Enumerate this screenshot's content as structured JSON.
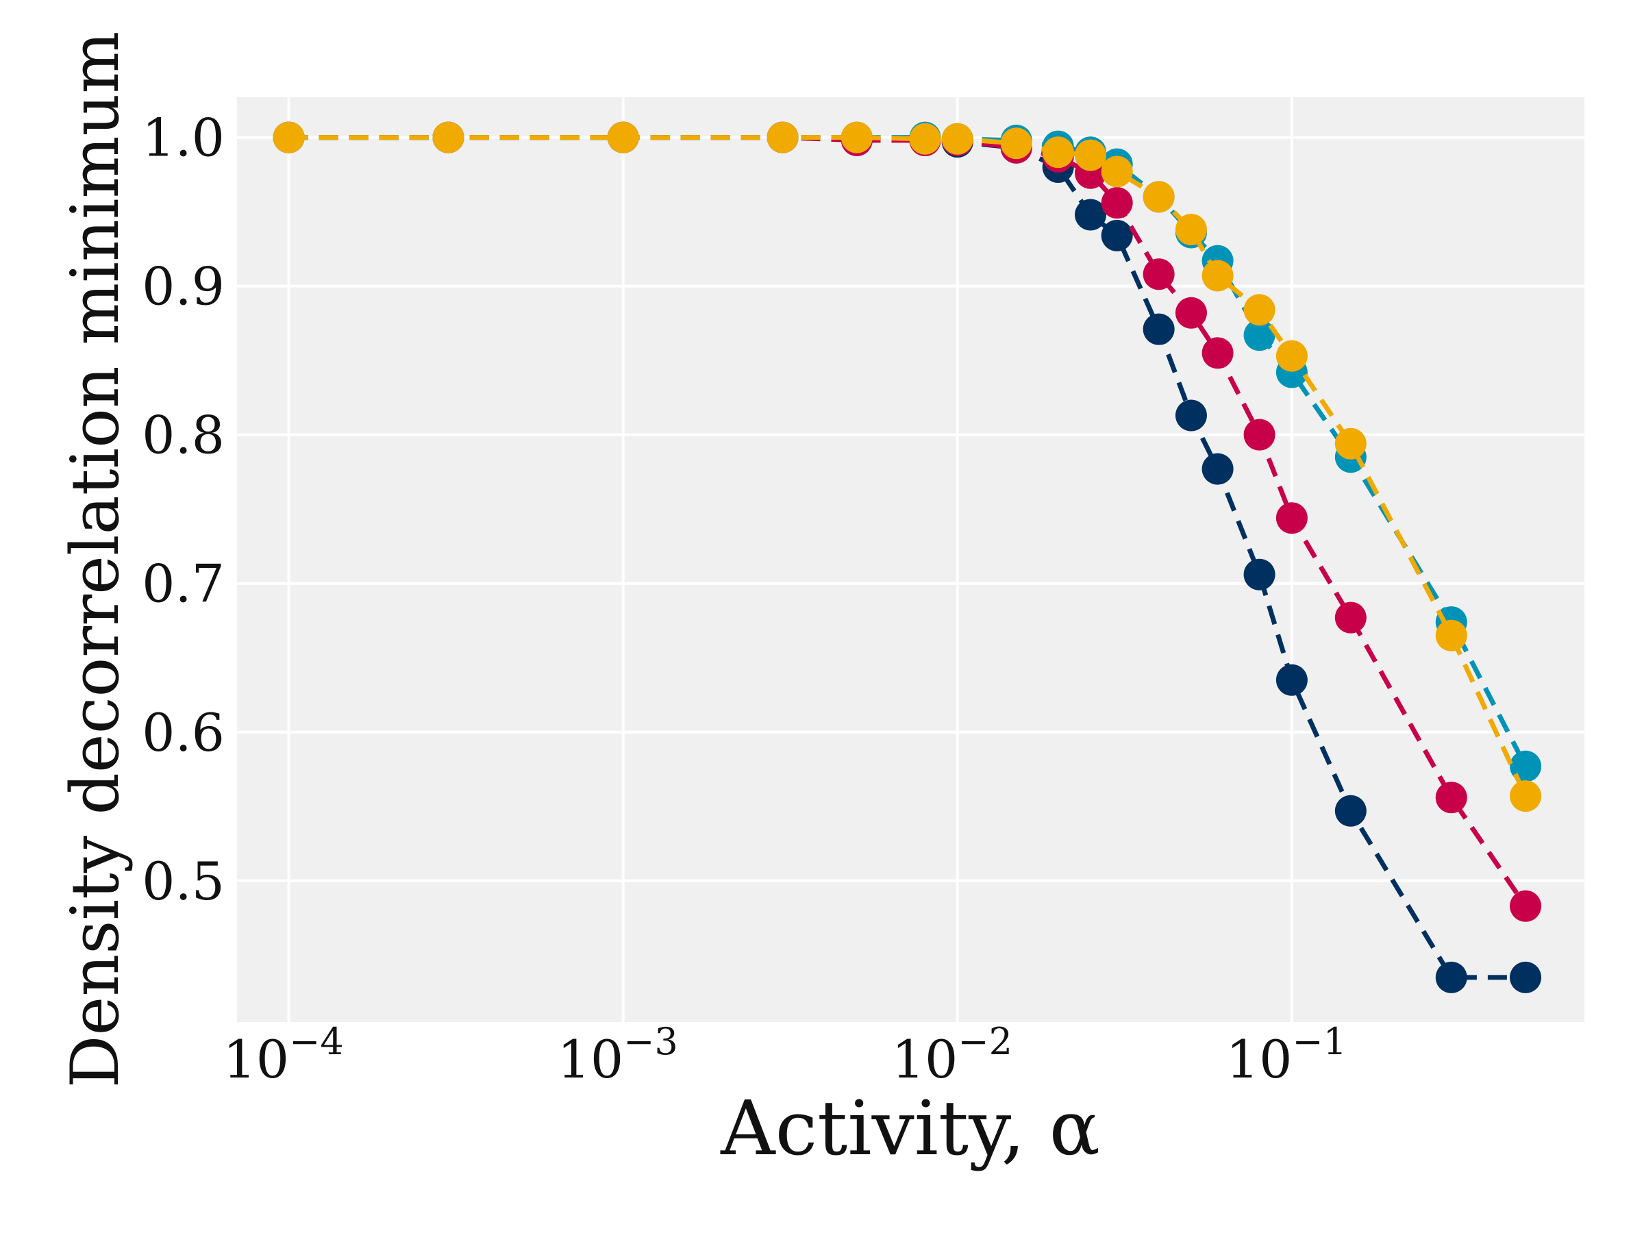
{
  "chart_data": {
    "type": "line",
    "title": "",
    "xlabel": "Activity, α",
    "ylabel": "Density decorrelation minimum",
    "xscale": "log",
    "xlim": [
      7e-05,
      0.75
    ],
    "ylim": [
      0.405,
      1.027
    ],
    "grid": true,
    "legend": "none",
    "background": "#f0f0f0",
    "grid_color": "#ffffff",
    "line_style": "dashed",
    "xticks": [
      {
        "value": 0.0001,
        "base": "10",
        "exp": "−4"
      },
      {
        "value": 0.001,
        "base": "10",
        "exp": "−3"
      },
      {
        "value": 0.01,
        "base": "10",
        "exp": "−2"
      },
      {
        "value": 0.1,
        "base": "10",
        "exp": "−1"
      }
    ],
    "yticks": [
      {
        "value": 0.5,
        "label": "0.5"
      },
      {
        "value": 0.6,
        "label": "0.6"
      },
      {
        "value": 0.7,
        "label": "0.7"
      },
      {
        "value": 0.8,
        "label": "0.8"
      },
      {
        "value": 0.9,
        "label": "0.9"
      },
      {
        "value": 1.0,
        "label": "1.0"
      }
    ],
    "x": [
      0.0001,
      0.0003,
      0.001,
      0.003,
      0.005,
      0.008,
      0.01,
      0.015,
      0.02,
      0.025,
      0.03,
      0.04,
      0.05,
      0.06,
      0.08,
      0.1,
      0.15,
      0.3,
      0.5
    ],
    "series": [
      {
        "color": "#003060",
        "values": [
          1.0,
          1.0,
          1.0,
          1.0,
          0.999,
          0.998,
          0.997,
          0.993,
          0.98,
          0.948,
          0.934,
          0.871,
          0.813,
          0.777,
          0.706,
          0.635,
          0.547,
          0.435,
          0.435
        ]
      },
      {
        "color": "#c8004a",
        "values": [
          1.0,
          1.0,
          1.0,
          1.0,
          0.998,
          0.998,
          0.998,
          0.993,
          0.987,
          0.976,
          0.956,
          0.908,
          0.882,
          0.855,
          0.8,
          0.744,
          0.677,
          0.556,
          0.483
        ]
      },
      {
        "color": "#0093b8",
        "values": [
          1.0,
          1.0,
          1.0,
          1.0,
          1.0,
          1.0,
          0.999,
          0.998,
          0.994,
          0.99,
          0.982,
          0.96,
          0.936,
          0.917,
          0.867,
          0.842,
          0.785,
          0.674,
          0.577
        ]
      },
      {
        "color": "#f0aa00",
        "values": [
          1.0,
          1.0,
          1.0,
          1.0,
          1.0,
          0.999,
          0.999,
          0.996,
          0.99,
          0.988,
          0.977,
          0.96,
          0.938,
          0.907,
          0.884,
          0.853,
          0.794,
          0.665,
          0.557
        ]
      }
    ]
  }
}
